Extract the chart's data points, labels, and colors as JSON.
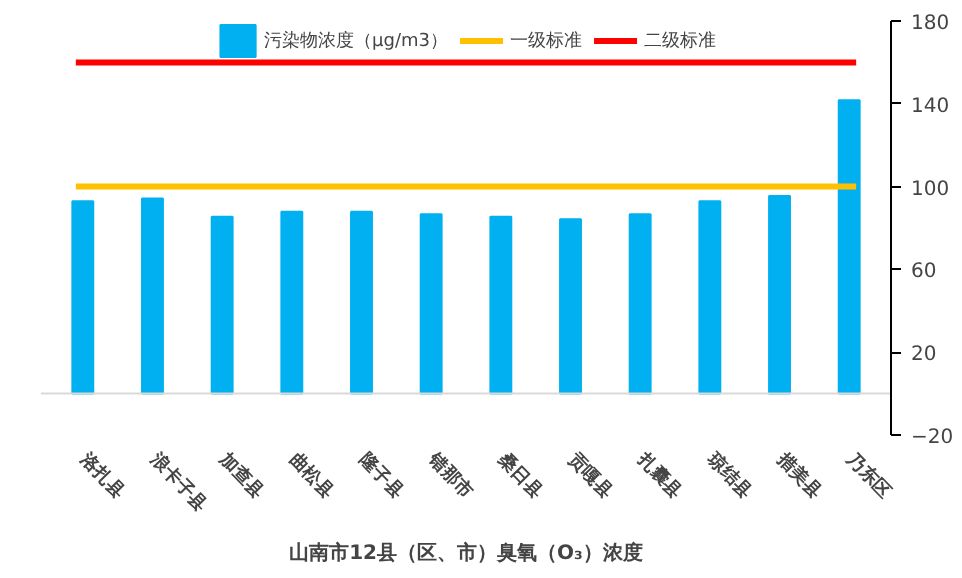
{
  "chart_data": {
    "type": "bar",
    "title": "山南市12县（区、市）臭氧（O₃）浓度",
    "categories": [
      "洛扎县",
      "浪卡子县",
      "加查县",
      "曲松县",
      "隆子县",
      "错那市",
      "桑日县",
      "贡嘎县",
      "扎囊县",
      "琼结县",
      "措美县",
      "乃东区"
    ],
    "series": [
      {
        "name": "污染物浓度（μg/m3）",
        "color": "#00b0f0",
        "values": [
          92.9,
          94.2,
          85.4,
          87.9,
          87.9,
          86.7,
          85.4,
          84.2,
          86.7,
          92.9,
          95.4,
          141.7
        ]
      }
    ],
    "ref_lines": [
      {
        "axis": "y",
        "value": 100,
        "label": "一级标准",
        "color": "#ffc000",
        "line_style": "solid"
      },
      {
        "axis": "y",
        "value": 160,
        "label": "二级标准",
        "color": "#ff0000",
        "line_style": "solid"
      }
    ],
    "ylim": [
      -20,
      180
    ],
    "yticks": [
      -20,
      20,
      60,
      100,
      140,
      180
    ],
    "grid": false,
    "legend": "top"
  }
}
